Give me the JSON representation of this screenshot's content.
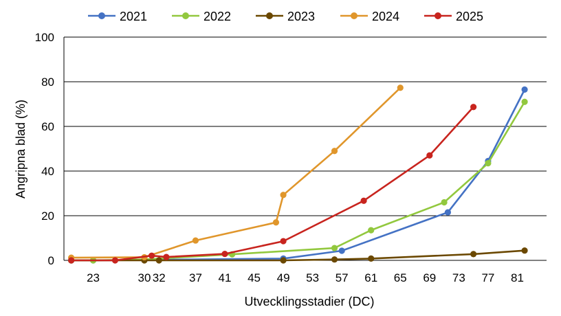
{
  "chart_data": {
    "type": "line",
    "title": "",
    "xlabel": "Utvecklingsstadier (DC)",
    "ylabel": "Angripna blad (%)",
    "x_tick_labels": [
      "23",
      "30",
      "32",
      "37",
      "41",
      "45",
      "49",
      "53",
      "57",
      "61",
      "65",
      "69",
      "73",
      "77",
      "81"
    ],
    "x_tick_positions": [
      23,
      30,
      32,
      37,
      41,
      45,
      49,
      53,
      57,
      61,
      65,
      69,
      73,
      77,
      81
    ],
    "xlim": [
      19,
      85
    ],
    "ylim": [
      0,
      100
    ],
    "y_ticks": [
      0,
      20,
      40,
      60,
      80,
      100
    ],
    "grid": "horizontal",
    "legend_position": "top",
    "series": [
      {
        "name": "2021",
        "color": "#4472c4",
        "points": [
          [
            20,
            0
          ],
          [
            23,
            0
          ],
          [
            49,
            0.8
          ],
          [
            57,
            4.3
          ],
          [
            71.5,
            21.5
          ],
          [
            77,
            44.5
          ],
          [
            82,
            76.5
          ]
        ]
      },
      {
        "name": "2022",
        "color": "#92c83e",
        "points": [
          [
            20,
            0
          ],
          [
            23,
            0
          ],
          [
            30,
            0.4
          ],
          [
            42,
            2.7
          ],
          [
            56,
            5.5
          ],
          [
            61,
            13.5
          ],
          [
            71,
            26
          ],
          [
            77,
            43.5
          ],
          [
            82,
            71
          ]
        ]
      },
      {
        "name": "2023",
        "color": "#6b4800",
        "points": [
          [
            20,
            0
          ],
          [
            30,
            0
          ],
          [
            32,
            0
          ],
          [
            49,
            0
          ],
          [
            56,
            0.4
          ],
          [
            61,
            0.8
          ],
          [
            75,
            2.8
          ],
          [
            82,
            4.4
          ]
        ]
      },
      {
        "name": "2024",
        "color": "#e0962b",
        "points": [
          [
            20,
            1.2
          ],
          [
            30,
            1.4
          ],
          [
            37,
            8.9
          ],
          [
            48,
            17
          ],
          [
            49,
            29.3
          ],
          [
            56,
            49
          ],
          [
            65,
            77.3
          ]
        ]
      },
      {
        "name": "2025",
        "color": "#c8241e",
        "points": [
          [
            20,
            0
          ],
          [
            26,
            0
          ],
          [
            31,
            2.1
          ],
          [
            33,
            1.5
          ],
          [
            41,
            2.9
          ],
          [
            49,
            8.6
          ],
          [
            60,
            26.7
          ],
          [
            69,
            47
          ],
          [
            75,
            68.7
          ]
        ]
      }
    ]
  }
}
